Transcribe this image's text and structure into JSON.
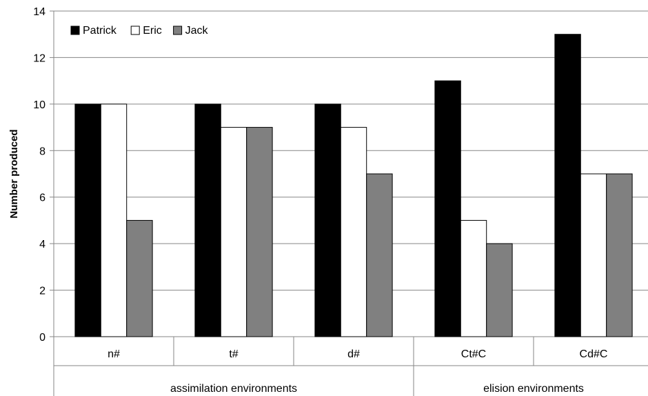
{
  "chart_data": {
    "type": "bar",
    "categories": [
      "n#",
      "t#",
      "d#",
      "Ct#C",
      "Cd#C"
    ],
    "groups": [
      {
        "label": "assimilation environments",
        "categories": [
          "n#",
          "t#",
          "d#"
        ]
      },
      {
        "label": "elision environments",
        "categories": [
          "Ct#C",
          "Cd#C"
        ]
      }
    ],
    "series": [
      {
        "name": "Patrick",
        "color": "#000000",
        "values": [
          10,
          10,
          10,
          11,
          13
        ]
      },
      {
        "name": "Eric",
        "color": "#ffffff",
        "values": [
          10,
          9,
          9,
          5,
          7
        ]
      },
      {
        "name": "Jack",
        "color": "#808080",
        "values": [
          5,
          9,
          7,
          4,
          7
        ]
      }
    ],
    "title": "",
    "xlabel": "",
    "ylabel": "Number produced",
    "ylim": [
      0,
      14
    ],
    "yticks": [
      0,
      2,
      4,
      6,
      8,
      10,
      12,
      14
    ],
    "grid": true,
    "legend_position": "top-left"
  }
}
